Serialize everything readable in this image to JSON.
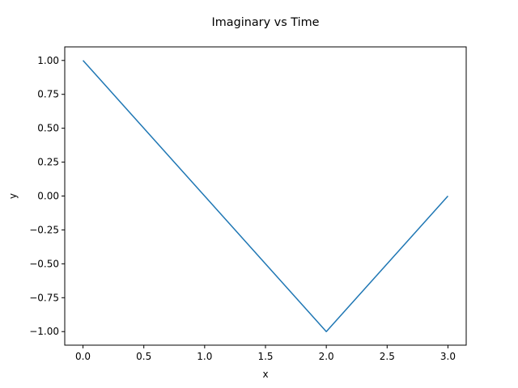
{
  "chart_data": {
    "type": "line",
    "title": "Imaginary vs Time",
    "xlabel": "x",
    "ylabel": "y",
    "xlim": [
      -0.15,
      3.15
    ],
    "ylim": [
      -1.1,
      1.1
    ],
    "x_ticks": [
      0.0,
      0.5,
      1.0,
      1.5,
      2.0,
      2.5,
      3.0
    ],
    "x_tick_labels": [
      "0.0",
      "0.5",
      "1.0",
      "1.5",
      "2.0",
      "2.5",
      "3.0"
    ],
    "y_ticks": [
      1.0,
      0.75,
      0.5,
      0.25,
      0.0,
      -0.25,
      -0.5,
      -0.75,
      -1.0
    ],
    "y_tick_labels": [
      "1.00",
      "0.75",
      "0.50",
      "0.25",
      "0.00",
      "−0.25",
      "−0.50",
      "−0.75",
      "−1.00"
    ],
    "grid": false,
    "series": [
      {
        "x": [
          0,
          1,
          2,
          3
        ],
        "y": [
          1,
          0,
          -1,
          0
        ],
        "color": "#1f77b4"
      }
    ]
  }
}
